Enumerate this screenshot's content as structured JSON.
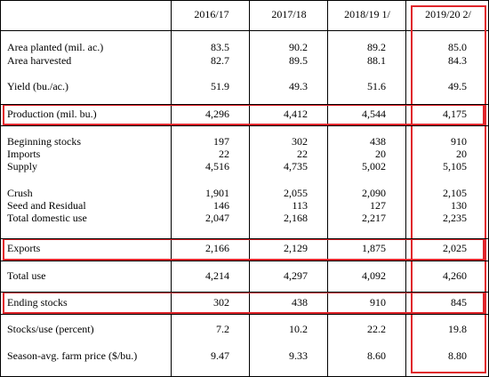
{
  "columns": [
    "2016/17",
    "2017/18",
    "2018/19 1/",
    "2019/20 2/"
  ],
  "rows": [
    {
      "label": "Area planted (mil. ac.)",
      "values": [
        "83.5",
        "90.2",
        "89.2",
        "85.0"
      ]
    },
    {
      "label": "Area harvested",
      "values": [
        "82.7",
        "89.5",
        "88.1",
        "84.3"
      ]
    },
    {
      "label": "Yield (bu./ac.)",
      "values": [
        "51.9",
        "49.3",
        "51.6",
        "49.5"
      ]
    },
    {
      "label": "Production (mil. bu.)",
      "values": [
        "4,296",
        "4,412",
        "4,544",
        "4,175"
      ]
    },
    {
      "label": "Beginning stocks",
      "values": [
        "197",
        "302",
        "438",
        "910"
      ]
    },
    {
      "label": "Imports",
      "values": [
        "22",
        "22",
        "20",
        "20"
      ]
    },
    {
      "label": "Supply",
      "values": [
        "4,516",
        "4,735",
        "5,002",
        "5,105"
      ]
    },
    {
      "label": "Crush",
      "values": [
        "1,901",
        "2,055",
        "2,090",
        "2,105"
      ]
    },
    {
      "label": "Seed and Residual",
      "values": [
        "146",
        "113",
        "127",
        "130"
      ]
    },
    {
      "label": "Total domestic use",
      "values": [
        "2,047",
        "2,168",
        "2,217",
        "2,235"
      ]
    },
    {
      "label": "Exports",
      "values": [
        "2,166",
        "2,129",
        "1,875",
        "2,025"
      ]
    },
    {
      "label": "Total use",
      "values": [
        "4,214",
        "4,297",
        "4,092",
        "4,260"
      ]
    },
    {
      "label": "Ending stocks",
      "values": [
        "302",
        "438",
        "910",
        "845"
      ]
    },
    {
      "label": "Stocks/use (percent)",
      "values": [
        "7.2",
        "10.2",
        "22.2",
        "19.8"
      ]
    },
    {
      "label": "Season-avg. farm price ($/bu.)",
      "values": [
        "9.47",
        "9.33",
        "8.60",
        "8.80"
      ]
    }
  ],
  "highlight_color": "#e0252b"
}
